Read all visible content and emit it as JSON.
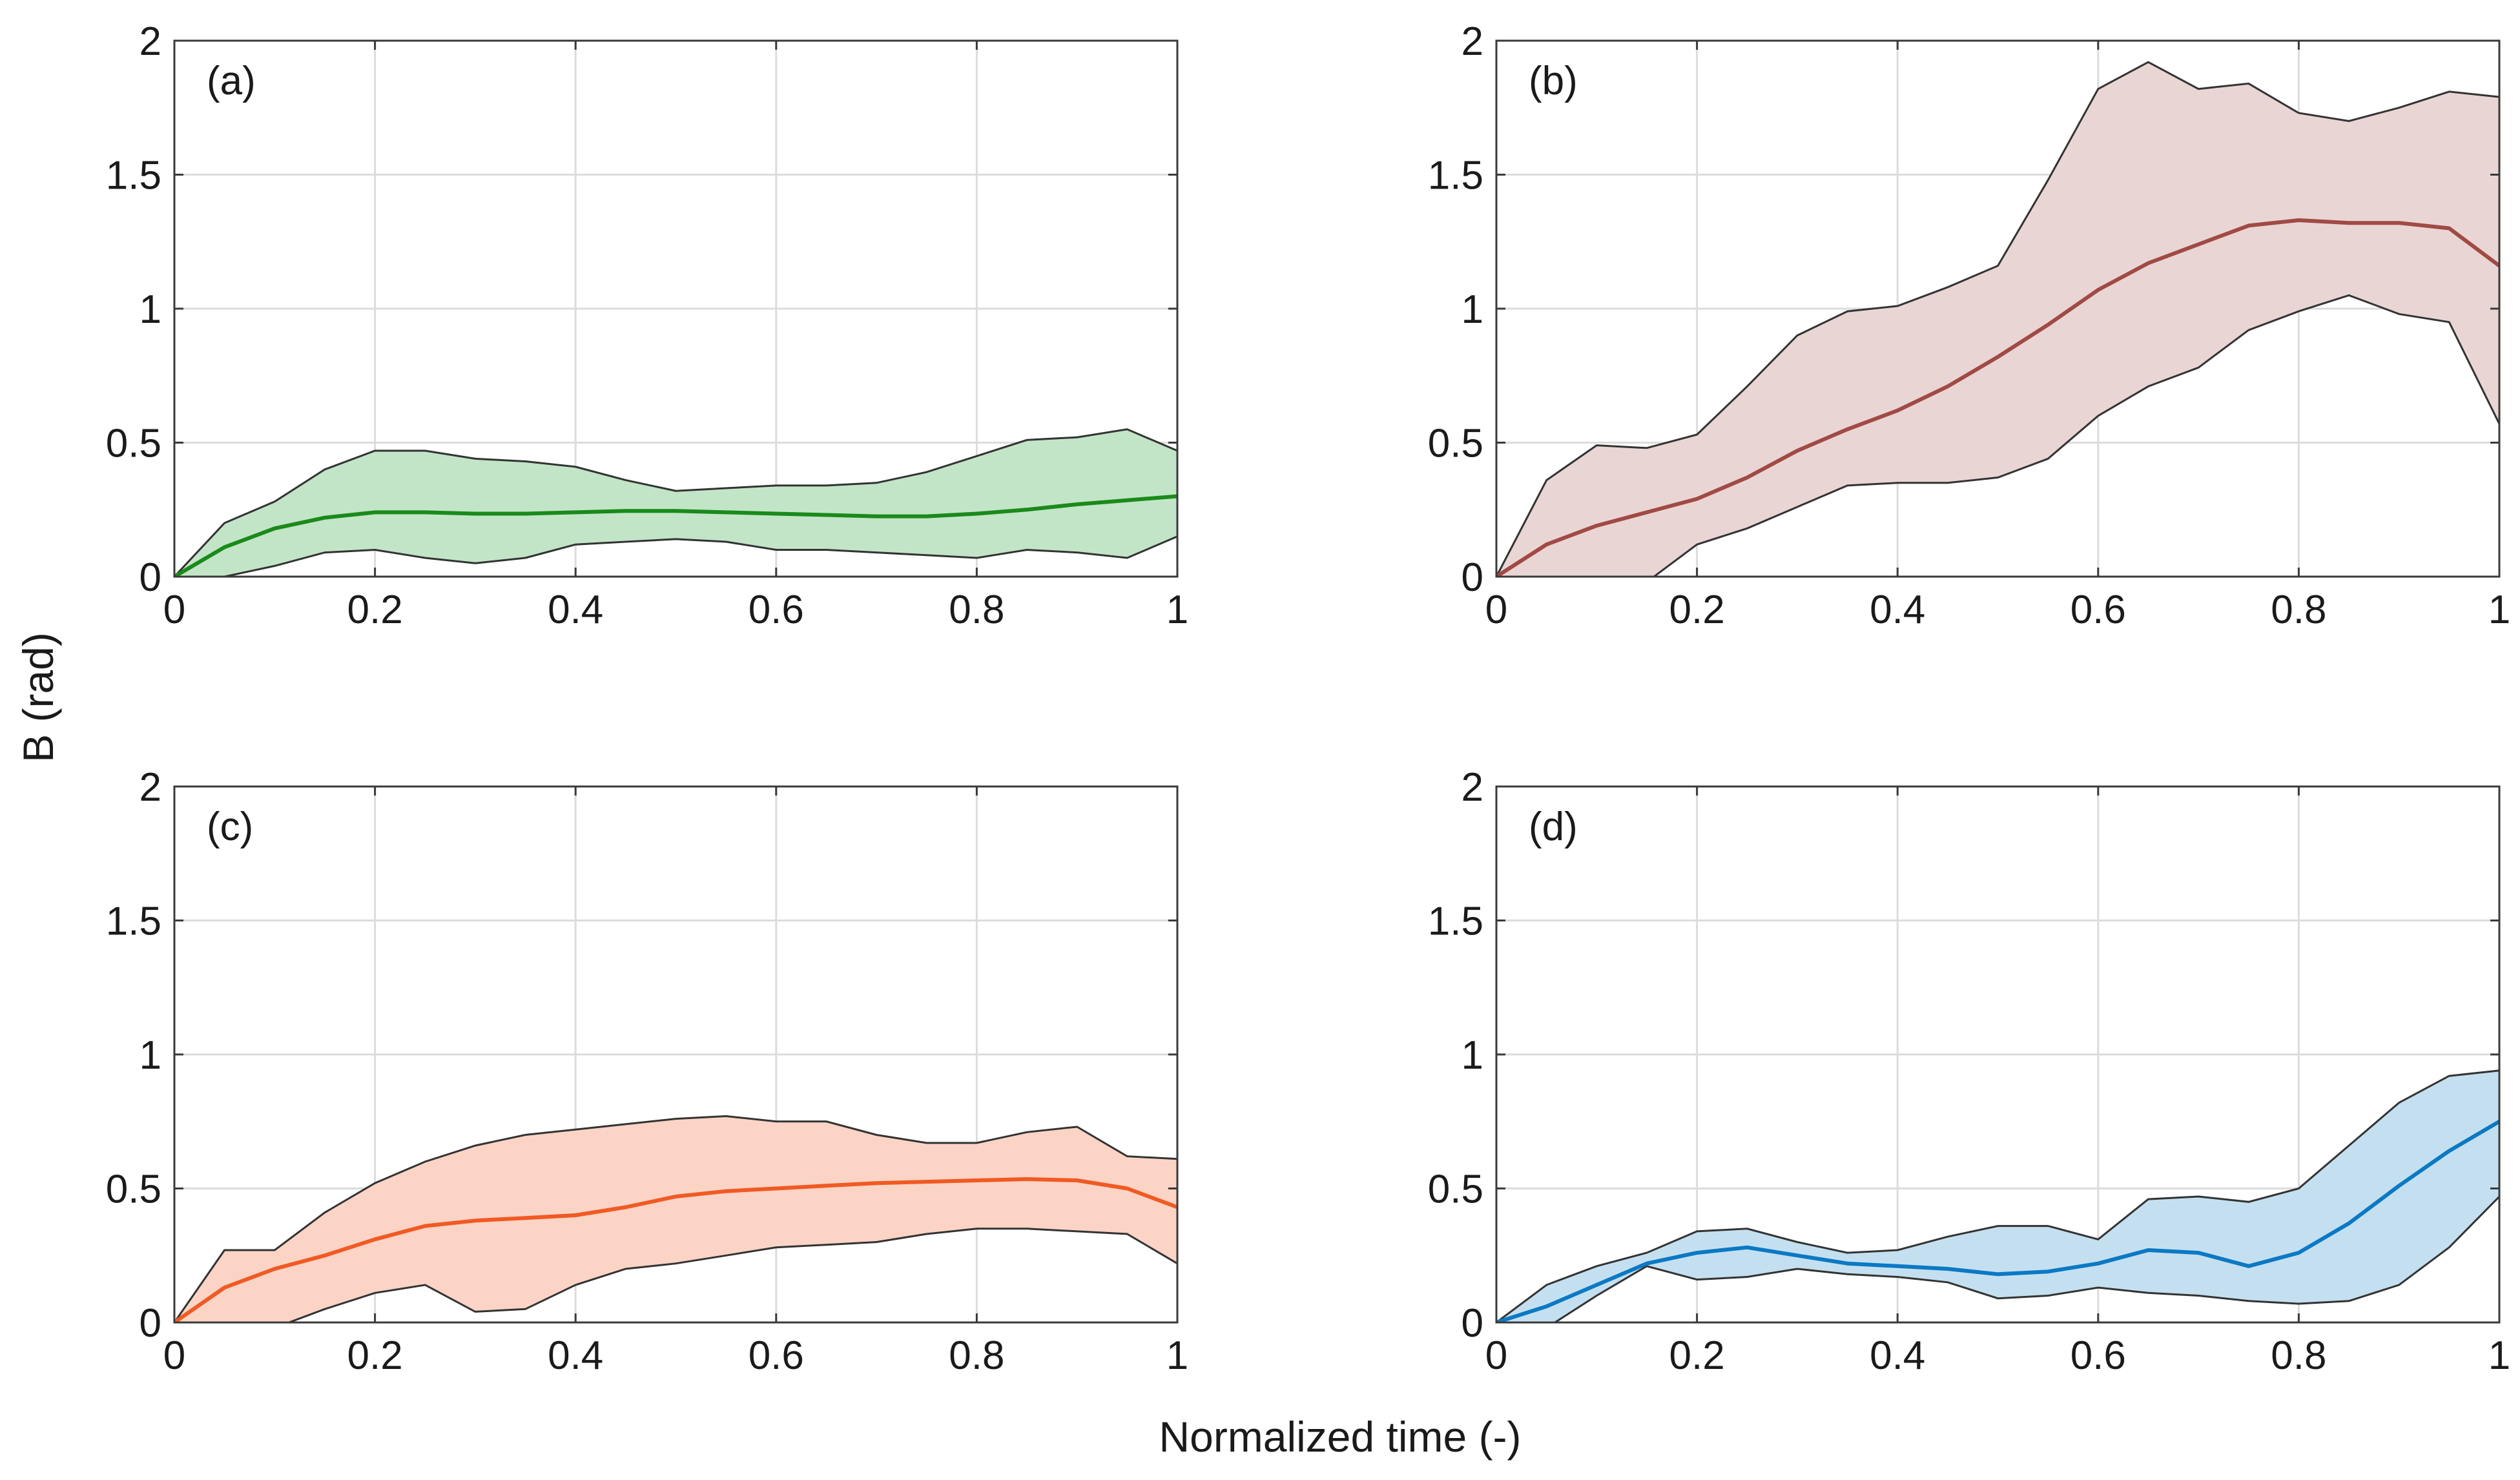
{
  "ylabel": "B (rad)",
  "xlabel": "Normalized time (-)",
  "chart_data": [
    {
      "type": "line",
      "panel_label": "(a)",
      "xlim": [
        0,
        1
      ],
      "ylim": [
        0,
        2
      ],
      "xticks": [
        "0",
        "0.2",
        "0.4",
        "0.6",
        "0.8",
        "1"
      ],
      "yticks": [
        "0",
        "0.5",
        "1",
        "1.5",
        "2"
      ],
      "grid": true,
      "color": "#1a8a1a",
      "fill_color": "#c2e5c7",
      "x": [
        0,
        0.05,
        0.1,
        0.15,
        0.2,
        0.25,
        0.3,
        0.35,
        0.4,
        0.45,
        0.5,
        0.55,
        0.6,
        0.65,
        0.7,
        0.75,
        0.8,
        0.85,
        0.9,
        0.95,
        1.0
      ],
      "mean": [
        0,
        0.11,
        0.18,
        0.22,
        0.24,
        0.24,
        0.235,
        0.235,
        0.24,
        0.245,
        0.245,
        0.24,
        0.235,
        0.23,
        0.225,
        0.225,
        0.235,
        0.25,
        0.27,
        0.285,
        0.3
      ],
      "upper": [
        0,
        0.2,
        0.28,
        0.4,
        0.47,
        0.47,
        0.44,
        0.43,
        0.41,
        0.36,
        0.32,
        0.33,
        0.34,
        0.34,
        0.35,
        0.39,
        0.45,
        0.51,
        0.52,
        0.55,
        0.47
      ],
      "lower": [
        0,
        0.0,
        0.04,
        0.09,
        0.1,
        0.07,
        0.05,
        0.07,
        0.12,
        0.13,
        0.14,
        0.13,
        0.1,
        0.1,
        0.09,
        0.08,
        0.07,
        0.1,
        0.09,
        0.07,
        0.15
      ]
    },
    {
      "type": "line",
      "panel_label": "(b)",
      "xlim": [
        0,
        1
      ],
      "ylim": [
        0,
        2
      ],
      "xticks": [
        "0",
        "0.2",
        "0.4",
        "0.6",
        "0.8",
        "1"
      ],
      "yticks": [
        "0",
        "0.5",
        "1",
        "1.5",
        "2"
      ],
      "grid": true,
      "color": "#a14a45",
      "fill_color": "#e9d6d4",
      "x": [
        0,
        0.05,
        0.1,
        0.15,
        0.2,
        0.25,
        0.3,
        0.35,
        0.4,
        0.45,
        0.5,
        0.55,
        0.6,
        0.65,
        0.7,
        0.75,
        0.8,
        0.85,
        0.9,
        0.95,
        1.0
      ],
      "mean": [
        0,
        0.12,
        0.19,
        0.24,
        0.29,
        0.37,
        0.47,
        0.55,
        0.62,
        0.71,
        0.82,
        0.94,
        1.07,
        1.17,
        1.24,
        1.31,
        1.33,
        1.32,
        1.32,
        1.3,
        1.16
      ],
      "upper": [
        0,
        0.36,
        0.49,
        0.48,
        0.53,
        0.71,
        0.9,
        0.99,
        1.01,
        1.08,
        1.16,
        1.48,
        1.82,
        1.92,
        1.82,
        1.84,
        1.73,
        1.7,
        1.75,
        1.81,
        1.79
      ],
      "lower": [
        0,
        -0.05,
        -0.08,
        -0.02,
        0.12,
        0.18,
        0.26,
        0.34,
        0.35,
        0.35,
        0.37,
        0.44,
        0.6,
        0.71,
        0.78,
        0.92,
        0.99,
        1.05,
        0.98,
        0.95,
        0.57
      ]
    },
    {
      "type": "line",
      "panel_label": "(c)",
      "xlim": [
        0,
        1
      ],
      "ylim": [
        0,
        2
      ],
      "xticks": [
        "0",
        "0.2",
        "0.4",
        "0.6",
        "0.8",
        "1"
      ],
      "yticks": [
        "0",
        "0.5",
        "1",
        "1.5",
        "2"
      ],
      "grid": true,
      "color": "#f05a23",
      "fill_color": "#fbd4c6",
      "x": [
        0,
        0.05,
        0.1,
        0.15,
        0.2,
        0.25,
        0.3,
        0.35,
        0.4,
        0.45,
        0.5,
        0.55,
        0.6,
        0.65,
        0.7,
        0.75,
        0.8,
        0.85,
        0.9,
        0.95,
        1.0
      ],
      "mean": [
        0,
        0.13,
        0.2,
        0.25,
        0.31,
        0.36,
        0.38,
        0.39,
        0.4,
        0.43,
        0.47,
        0.49,
        0.5,
        0.51,
        0.52,
        0.525,
        0.53,
        0.535,
        0.53,
        0.5,
        0.43
      ],
      "upper": [
        0,
        0.27,
        0.27,
        0.41,
        0.52,
        0.6,
        0.66,
        0.7,
        0.72,
        0.74,
        0.76,
        0.77,
        0.75,
        0.75,
        0.7,
        0.67,
        0.67,
        0.71,
        0.73,
        0.62,
        0.61
      ],
      "lower": [
        0,
        -0.08,
        -0.02,
        0.05,
        0.11,
        0.14,
        0.04,
        0.05,
        0.14,
        0.2,
        0.22,
        0.25,
        0.28,
        0.29,
        0.3,
        0.33,
        0.35,
        0.35,
        0.34,
        0.33,
        0.22
      ]
    },
    {
      "type": "line",
      "panel_label": "(d)",
      "xlim": [
        0,
        1
      ],
      "ylim": [
        0,
        2
      ],
      "xticks": [
        "0",
        "0.2",
        "0.4",
        "0.6",
        "0.8",
        "1"
      ],
      "yticks": [
        "0",
        "0.5",
        "1",
        "1.5",
        "2"
      ],
      "grid": true,
      "color": "#0b79c4",
      "fill_color": "#c4e0f0",
      "x": [
        0,
        0.05,
        0.1,
        0.15,
        0.2,
        0.25,
        0.3,
        0.35,
        0.4,
        0.45,
        0.5,
        0.55,
        0.6,
        0.65,
        0.7,
        0.75,
        0.8,
        0.85,
        0.9,
        0.95,
        1.0
      ],
      "mean": [
        0,
        0.06,
        0.14,
        0.22,
        0.26,
        0.28,
        0.25,
        0.22,
        0.21,
        0.2,
        0.18,
        0.19,
        0.22,
        0.27,
        0.26,
        0.21,
        0.26,
        0.37,
        0.51,
        0.64,
        0.75
      ],
      "upper": [
        0,
        0.14,
        0.21,
        0.26,
        0.34,
        0.35,
        0.3,
        0.26,
        0.27,
        0.32,
        0.36,
        0.36,
        0.31,
        0.46,
        0.47,
        0.45,
        0.5,
        0.66,
        0.82,
        0.92,
        0.94
      ],
      "lower": [
        0,
        -0.02,
        0.1,
        0.21,
        0.16,
        0.17,
        0.2,
        0.18,
        0.17,
        0.15,
        0.09,
        0.1,
        0.13,
        0.11,
        0.1,
        0.08,
        0.07,
        0.08,
        0.14,
        0.28,
        0.47
      ]
    }
  ]
}
